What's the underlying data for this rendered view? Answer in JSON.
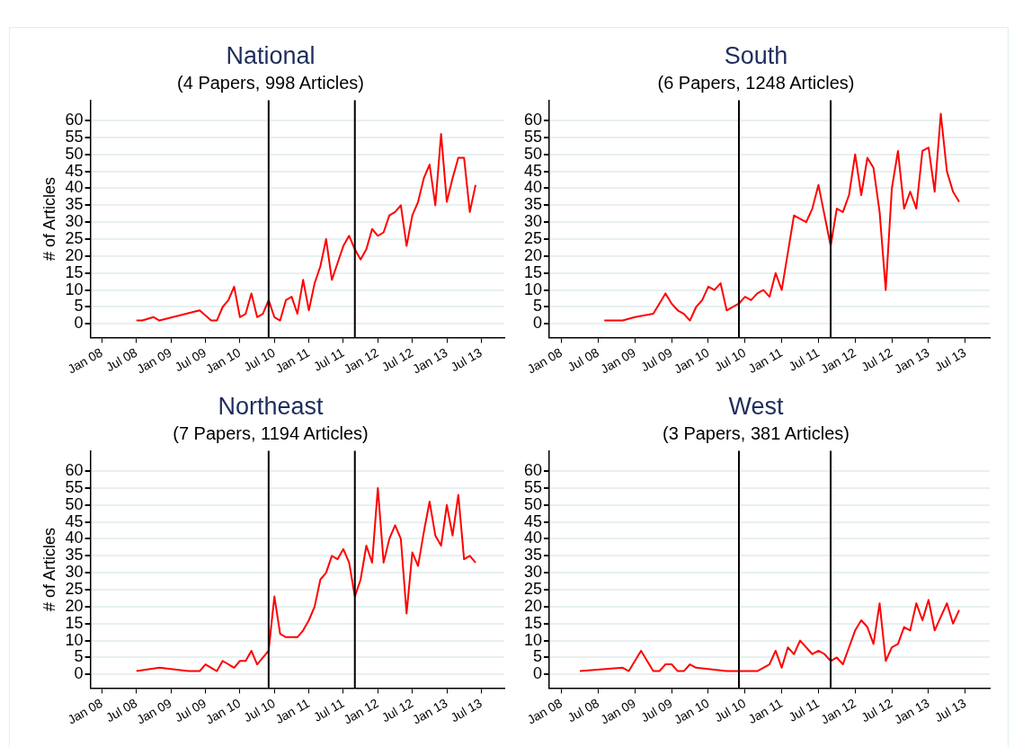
{
  "chart_data": [
    {
      "type": "line",
      "title": "National",
      "subtitle": "(4 Papers, 998 Articles)",
      "ylabel": "# of Articles",
      "series": [
        {
          "color": "#ff0000",
          "x": [
            "2008-07",
            "2008-08",
            "2008-10",
            "2008-11",
            "2009-06",
            "2009-08",
            "2009-09",
            "2009-10",
            "2009-11",
            "2009-12",
            "2010-01",
            "2010-02",
            "2010-03",
            "2010-04",
            "2010-05",
            "2010-06",
            "2010-07",
            "2010-08",
            "2010-09",
            "2010-10",
            "2010-11",
            "2010-12",
            "2011-01",
            "2011-02",
            "2011-03",
            "2011-04",
            "2011-05",
            "2011-06",
            "2011-07",
            "2011-08",
            "2011-09",
            "2011-10",
            "2011-11",
            "2011-12",
            "2012-01",
            "2012-02",
            "2012-03",
            "2012-04",
            "2012-05",
            "2012-06",
            "2012-07",
            "2012-08",
            "2012-09",
            "2012-10",
            "2012-11",
            "2012-12",
            "2013-01",
            "2013-02",
            "2013-03",
            "2013-04",
            "2013-05",
            "2013-06"
          ],
          "values": [
            1,
            1,
            2,
            1,
            4,
            1,
            1,
            5,
            7,
            11,
            2,
            3,
            9,
            2,
            3,
            7,
            2,
            1,
            7,
            8,
            3,
            13,
            4,
            12,
            17,
            25,
            13,
            18,
            23,
            26,
            22,
            19,
            22,
            28,
            26,
            27,
            32,
            33,
            35,
            23,
            32,
            36,
            43,
            47,
            35,
            56,
            36,
            43,
            49,
            49,
            33,
            41
          ]
        }
      ],
      "xlim": [
        "2007-11",
        "2013-11"
      ],
      "ylim": [
        -4,
        66
      ],
      "xticks": [
        {
          "value": "2008-01",
          "label": "Jan 08"
        },
        {
          "value": "2008-07",
          "label": "Jul 08"
        },
        {
          "value": "2009-01",
          "label": "Jan 09"
        },
        {
          "value": "2009-07",
          "label": "Jul 09"
        },
        {
          "value": "2010-01",
          "label": "Jan 10"
        },
        {
          "value": "2010-07",
          "label": "Jul 10"
        },
        {
          "value": "2011-01",
          "label": "Jan 11"
        },
        {
          "value": "2011-07",
          "label": "Jul 11"
        },
        {
          "value": "2012-01",
          "label": "Jan 12"
        },
        {
          "value": "2012-07",
          "label": "Jul 12"
        },
        {
          "value": "2013-01",
          "label": "Jan 13"
        },
        {
          "value": "2013-07",
          "label": "Jul 13"
        }
      ],
      "yticks": [
        0,
        5,
        10,
        15,
        20,
        25,
        30,
        35,
        40,
        45,
        50,
        55,
        60
      ],
      "grid": "y",
      "legend": false,
      "ref_lines": [
        {
          "axis": "x",
          "value": "2010-06",
          "color": "#000000"
        },
        {
          "axis": "x",
          "value": "2011-09",
          "color": "#000000"
        }
      ]
    },
    {
      "type": "line",
      "title": "South",
      "subtitle": "(6 Papers, 1248 Articles)",
      "series": [
        {
          "color": "#ff0000",
          "x": [
            "2008-08",
            "2008-11",
            "2009-01",
            "2009-04",
            "2009-06",
            "2009-07",
            "2009-08",
            "2009-09",
            "2009-10",
            "2009-11",
            "2009-12",
            "2010-01",
            "2010-02",
            "2010-03",
            "2010-04",
            "2010-06",
            "2010-07",
            "2010-08",
            "2010-09",
            "2010-10",
            "2010-11",
            "2010-12",
            "2011-01",
            "2011-03",
            "2011-05",
            "2011-06",
            "2011-07",
            "2011-09",
            "2011-10",
            "2011-11",
            "2011-12",
            "2012-01",
            "2012-02",
            "2012-03",
            "2012-04",
            "2012-05",
            "2012-06",
            "2012-07",
            "2012-08",
            "2012-09",
            "2012-10",
            "2012-11",
            "2012-12",
            "2013-01",
            "2013-02",
            "2013-03",
            "2013-04",
            "2013-05",
            "2013-06"
          ],
          "values": [
            1,
            1,
            2,
            3,
            9,
            6,
            4,
            3,
            1,
            5,
            7,
            11,
            10,
            12,
            4,
            6,
            8,
            7,
            9,
            10,
            8,
            15,
            10,
            32,
            30,
            34,
            41,
            23,
            34,
            33,
            38,
            50,
            38,
            49,
            46,
            33,
            10,
            40,
            51,
            34,
            39,
            34,
            51,
            52,
            39,
            62,
            45,
            39,
            36
          ]
        }
      ],
      "xlim": [
        "2007-11",
        "2013-11"
      ],
      "ylim": [
        -4,
        66
      ],
      "xticks": [
        {
          "value": "2008-01",
          "label": "Jan 08"
        },
        {
          "value": "2008-07",
          "label": "Jul 08"
        },
        {
          "value": "2009-01",
          "label": "Jan 09"
        },
        {
          "value": "2009-07",
          "label": "Jul 09"
        },
        {
          "value": "2010-01",
          "label": "Jan 10"
        },
        {
          "value": "2010-07",
          "label": "Jul 10"
        },
        {
          "value": "2011-01",
          "label": "Jan 11"
        },
        {
          "value": "2011-07",
          "label": "Jul 11"
        },
        {
          "value": "2012-01",
          "label": "Jan 12"
        },
        {
          "value": "2012-07",
          "label": "Jul 12"
        },
        {
          "value": "2013-01",
          "label": "Jan 13"
        },
        {
          "value": "2013-07",
          "label": "Jul 13"
        }
      ],
      "yticks": [
        0,
        5,
        10,
        15,
        20,
        25,
        30,
        35,
        40,
        45,
        50,
        55,
        60
      ],
      "grid": "y",
      "legend": false,
      "ref_lines": [
        {
          "axis": "x",
          "value": "2010-06",
          "color": "#000000"
        },
        {
          "axis": "x",
          "value": "2011-09",
          "color": "#000000"
        }
      ]
    },
    {
      "type": "line",
      "title": "Northeast",
      "subtitle": "(7 Papers, 1194 Articles)",
      "ylabel": "# of Articles",
      "series": [
        {
          "color": "#ff0000",
          "x": [
            "2008-07",
            "2008-11",
            "2009-04",
            "2009-06",
            "2009-07",
            "2009-09",
            "2009-10",
            "2009-12",
            "2010-01",
            "2010-02",
            "2010-03",
            "2010-04",
            "2010-06",
            "2010-07",
            "2010-08",
            "2010-09",
            "2010-11",
            "2010-12",
            "2011-01",
            "2011-02",
            "2011-03",
            "2011-04",
            "2011-05",
            "2011-06",
            "2011-07",
            "2011-08",
            "2011-09",
            "2011-10",
            "2011-11",
            "2011-12",
            "2012-01",
            "2012-02",
            "2012-03",
            "2012-04",
            "2012-05",
            "2012-06",
            "2012-07",
            "2012-08",
            "2012-09",
            "2012-10",
            "2012-11",
            "2012-12",
            "2013-01",
            "2013-02",
            "2013-03",
            "2013-04",
            "2013-05",
            "2013-06"
          ],
          "values": [
            1,
            2,
            1,
            1,
            3,
            1,
            4,
            2,
            4,
            4,
            7,
            3,
            7,
            23,
            12,
            11,
            11,
            13,
            16,
            20,
            28,
            30,
            35,
            34,
            37,
            33,
            23,
            28,
            38,
            33,
            55,
            33,
            40,
            44,
            40,
            18,
            36,
            32,
            42,
            51,
            41,
            38,
            50,
            41,
            53,
            34,
            35,
            33
          ]
        }
      ],
      "xlim": [
        "2007-11",
        "2013-11"
      ],
      "ylim": [
        -4,
        66
      ],
      "xticks": [
        {
          "value": "2008-01",
          "label": "Jan 08"
        },
        {
          "value": "2008-07",
          "label": "Jul 08"
        },
        {
          "value": "2009-01",
          "label": "Jan 09"
        },
        {
          "value": "2009-07",
          "label": "Jul 09"
        },
        {
          "value": "2010-01",
          "label": "Jan 10"
        },
        {
          "value": "2010-07",
          "label": "Jul 10"
        },
        {
          "value": "2011-01",
          "label": "Jan 11"
        },
        {
          "value": "2011-07",
          "label": "Jul 11"
        },
        {
          "value": "2012-01",
          "label": "Jan 12"
        },
        {
          "value": "2012-07",
          "label": "Jul 12"
        },
        {
          "value": "2013-01",
          "label": "Jan 13"
        },
        {
          "value": "2013-07",
          "label": "Jul 13"
        }
      ],
      "yticks": [
        0,
        5,
        10,
        15,
        20,
        25,
        30,
        35,
        40,
        45,
        50,
        55,
        60
      ],
      "grid": "y",
      "legend": false,
      "ref_lines": [
        {
          "axis": "x",
          "value": "2010-06",
          "color": "#000000"
        },
        {
          "axis": "x",
          "value": "2011-09",
          "color": "#000000"
        }
      ]
    },
    {
      "type": "line",
      "title": "West",
      "subtitle": "(3 Papers, 381 Articles)",
      "series": [
        {
          "color": "#ff0000",
          "x": [
            "2008-04",
            "2008-11",
            "2008-12",
            "2009-02",
            "2009-04",
            "2009-05",
            "2009-06",
            "2009-07",
            "2009-08",
            "2009-09",
            "2009-10",
            "2009-11",
            "2010-04",
            "2010-09",
            "2010-11",
            "2010-12",
            "2011-01",
            "2011-02",
            "2011-03",
            "2011-04",
            "2011-06",
            "2011-07",
            "2011-08",
            "2011-09",
            "2011-10",
            "2011-11",
            "2012-01",
            "2012-02",
            "2012-03",
            "2012-04",
            "2012-05",
            "2012-06",
            "2012-07",
            "2012-08",
            "2012-09",
            "2012-10",
            "2012-11",
            "2012-12",
            "2013-01",
            "2013-02",
            "2013-04",
            "2013-05",
            "2013-06"
          ],
          "values": [
            1,
            2,
            1,
            7,
            1,
            1,
            3,
            3,
            1,
            1,
            3,
            2,
            1,
            1,
            3,
            7,
            2,
            8,
            6,
            10,
            6,
            7,
            6,
            4,
            5,
            3,
            13,
            16,
            14,
            9,
            21,
            4,
            8,
            9,
            14,
            13,
            21,
            16,
            22,
            13,
            21,
            15,
            19
          ]
        }
      ],
      "xlim": [
        "2007-11",
        "2013-11"
      ],
      "ylim": [
        -4,
        66
      ],
      "xticks": [
        {
          "value": "2008-01",
          "label": "Jan 08"
        },
        {
          "value": "2008-07",
          "label": "Jul 08"
        },
        {
          "value": "2009-01",
          "label": "Jan 09"
        },
        {
          "value": "2009-07",
          "label": "Jul 09"
        },
        {
          "value": "2010-01",
          "label": "Jan 10"
        },
        {
          "value": "2010-07",
          "label": "Jul 10"
        },
        {
          "value": "2011-01",
          "label": "Jan 11"
        },
        {
          "value": "2011-07",
          "label": "Jul 11"
        },
        {
          "value": "2012-01",
          "label": "Jan 12"
        },
        {
          "value": "2012-07",
          "label": "Jul 12"
        },
        {
          "value": "2013-01",
          "label": "Jan 13"
        },
        {
          "value": "2013-07",
          "label": "Jul 13"
        }
      ],
      "yticks": [
        0,
        5,
        10,
        15,
        20,
        25,
        30,
        35,
        40,
        45,
        50,
        55,
        60
      ],
      "grid": "y",
      "legend": false,
      "ref_lines": [
        {
          "axis": "x",
          "value": "2010-06",
          "color": "#000000"
        },
        {
          "axis": "x",
          "value": "2011-09",
          "color": "#000000"
        }
      ]
    }
  ]
}
